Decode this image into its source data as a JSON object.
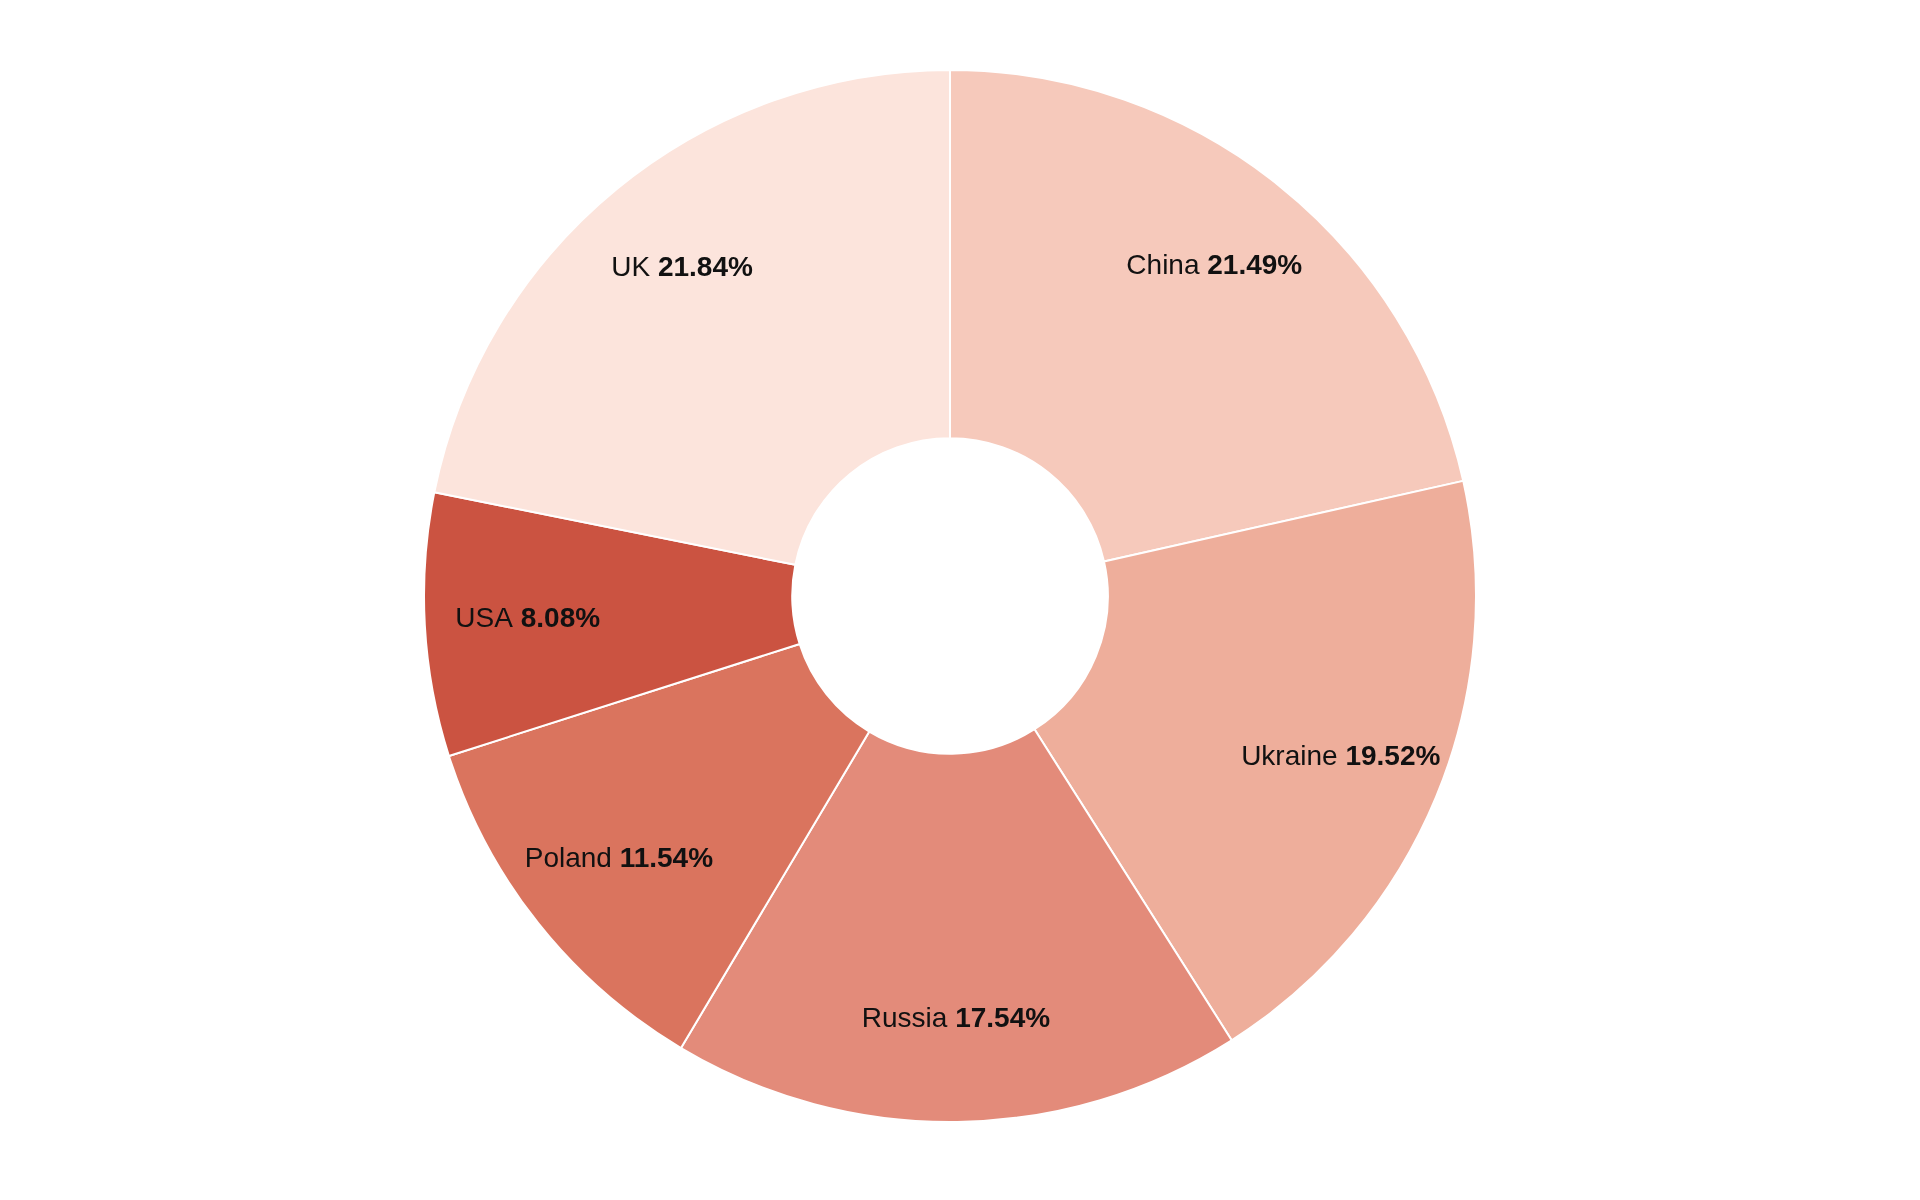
{
  "chart_data": {
    "type": "donut",
    "categories": [
      "China",
      "Ukraine",
      "Russia",
      "Poland",
      "USA",
      "UK"
    ],
    "values": [
      21.49,
      19.52,
      17.54,
      11.54,
      8.08,
      21.84
    ],
    "value_labels": [
      "21.49%",
      "19.52%",
      "17.54%",
      "11.54%",
      "8.08%",
      "21.84%"
    ],
    "colors": [
      "#f6c9bb",
      "#eeae9b",
      "#e38b7a",
      "#da745e",
      "#cb5341",
      "#fce4dc"
    ]
  }
}
